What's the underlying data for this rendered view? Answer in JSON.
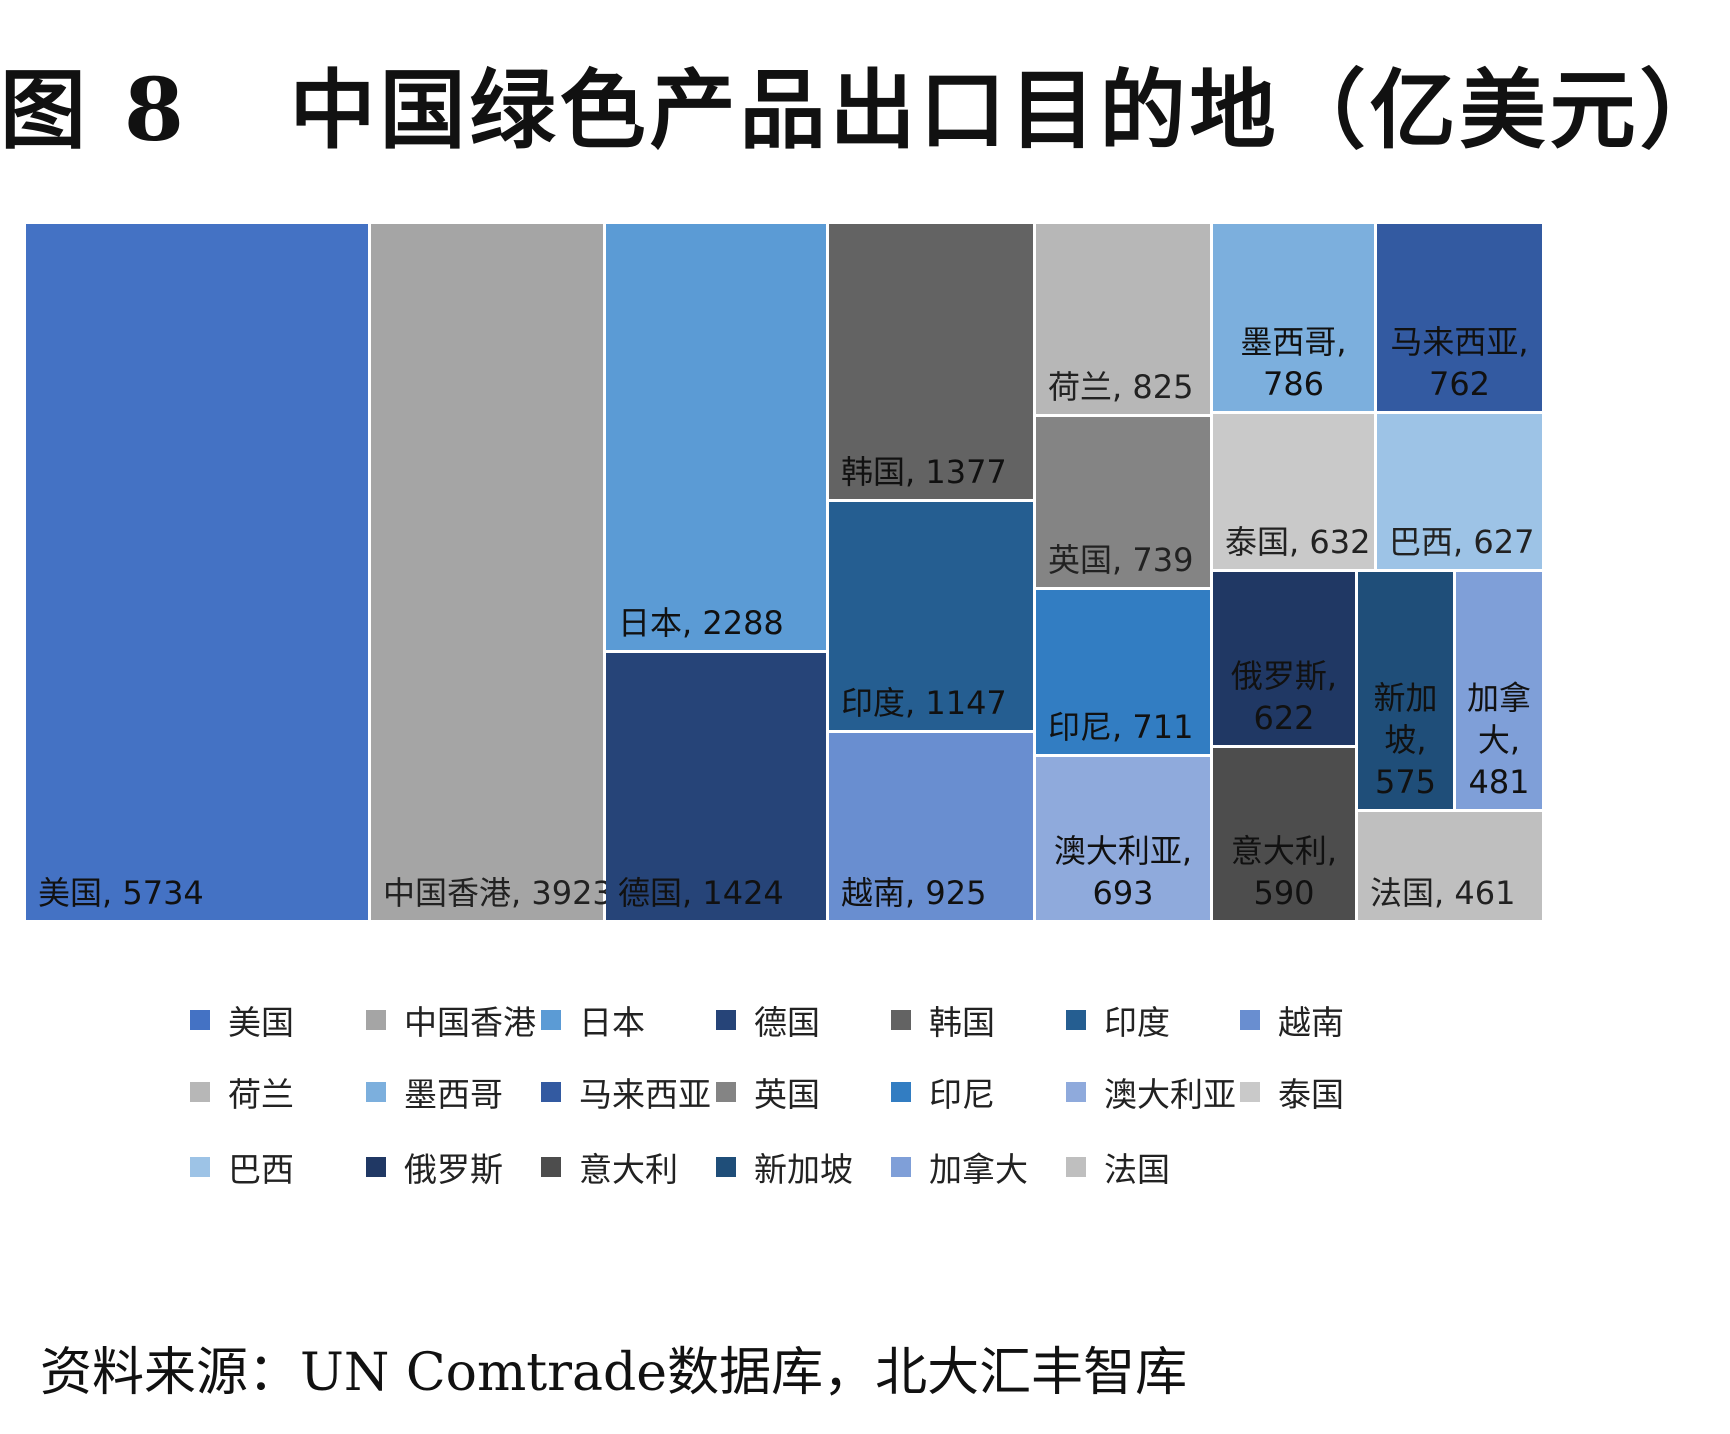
{
  "title": "图 8   中国绿色产品出口目的地（亿美元）",
  "source": "资料来源：UN Comtrade数据库，北大汇丰智库",
  "chart_data": {
    "type": "treemap",
    "legend_position": "bottom",
    "unit": "亿美元",
    "items": [
      {
        "name": "美国",
        "value": 5734,
        "color": "#4472c4",
        "label_lines": [
          "美国, 5734"
        ]
      },
      {
        "name": "中国香港",
        "value": 3923,
        "color": "#a5a5a5",
        "label_lines": [
          "中国香港, 3923"
        ]
      },
      {
        "name": "日本",
        "value": 2288,
        "color": "#5b9bd5",
        "label_lines": [
          "日本, 2288"
        ]
      },
      {
        "name": "德国",
        "value": 1424,
        "color": "#264478",
        "label_lines": [
          "德国, 1424"
        ]
      },
      {
        "name": "韩国",
        "value": 1377,
        "color": "#636363",
        "label_lines": [
          "韩国, 1377"
        ]
      },
      {
        "name": "印度",
        "value": 1147,
        "color": "#255e91",
        "label_lines": [
          "印度, 1147"
        ]
      },
      {
        "name": "越南",
        "value": 925,
        "color": "#698ed0",
        "label_lines": [
          "越南, 925"
        ]
      },
      {
        "name": "荷兰",
        "value": 825,
        "color": "#b7b7b7",
        "label_lines": [
          "荷兰, 825"
        ]
      },
      {
        "name": "墨西哥",
        "value": 786,
        "color": "#7cafdd",
        "label_lines": [
          "墨西哥,",
          "786"
        ]
      },
      {
        "name": "马来西亚",
        "value": 762,
        "color": "#335aa1",
        "label_lines": [
          "马来西亚,",
          "762"
        ]
      },
      {
        "name": "英国",
        "value": 739,
        "color": "#848484",
        "label_lines": [
          "英国, 739"
        ]
      },
      {
        "name": "印尼",
        "value": 711,
        "color": "#327dc2",
        "label_lines": [
          "印尼, 711"
        ]
      },
      {
        "name": "澳大利亚",
        "value": 693,
        "color": "#8faadc",
        "label_lines": [
          "澳大利亚,",
          "693"
        ]
      },
      {
        "name": "泰国",
        "value": 632,
        "color": "#c9c9c9",
        "label_lines": [
          "泰国, 632"
        ]
      },
      {
        "name": "巴西",
        "value": 627,
        "color": "#9dc3e6",
        "label_lines": [
          "巴西, 627"
        ]
      },
      {
        "name": "俄罗斯",
        "value": 622,
        "color": "#203864",
        "label_lines": [
          "俄罗斯,",
          "622"
        ]
      },
      {
        "name": "意大利",
        "value": 590,
        "color": "#4d4d4d",
        "label_lines": [
          "意大利,",
          "590"
        ]
      },
      {
        "name": "新加坡",
        "value": 575,
        "color": "#1f4e79",
        "label_lines": [
          "新加",
          "坡,",
          "575"
        ]
      },
      {
        "name": "加拿大",
        "value": 481,
        "color": "#7f9fd8",
        "label_lines": [
          "加拿",
          "大,",
          "481"
        ]
      },
      {
        "name": "法国",
        "value": 461,
        "color": "#bfbfbf",
        "label_lines": [
          "法国, 461"
        ]
      }
    ]
  }
}
